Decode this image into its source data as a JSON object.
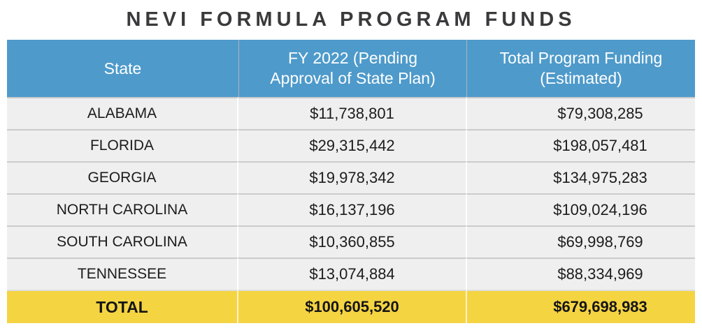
{
  "page": {
    "title": "NEVI FORMULA PROGRAM FUNDS"
  },
  "colors": {
    "header_bg": "#4e9acb",
    "header_text": "#ffffff",
    "row_bg": "#f0efef",
    "row_separator": "#cbcbcb",
    "total_bg": "#f5d442",
    "title_text": "#3a3a3c",
    "body_text": "#1c1c1c",
    "page_bg": "#ffffff"
  },
  "table": {
    "headers": {
      "state": "State",
      "fy2022": "FY 2022 (Pending\nApproval of State Plan)",
      "total": "Total Program Funding\n(Estimated)"
    },
    "rows": [
      {
        "state": "ALABAMA",
        "fy2022": "$11,738,801",
        "total": "$79,308,285"
      },
      {
        "state": "FLORIDA",
        "fy2022": "$29,315,442",
        "total": "$198,057,481"
      },
      {
        "state": "GEORGIA",
        "fy2022": "$19,978,342",
        "total": "$134,975,283"
      },
      {
        "state": "NORTH CAROLINA",
        "fy2022": "$16,137,196",
        "total": "$109,024,196"
      },
      {
        "state": "SOUTH CAROLINA",
        "fy2022": "$10,360,855",
        "total": "$69,998,769"
      },
      {
        "state": "TENNESSEE",
        "fy2022": "$13,074,884",
        "total": "$88,334,969"
      }
    ],
    "total_row": {
      "label": "TOTAL",
      "fy2022": "$100,605,520",
      "total": "$679,698,983"
    }
  },
  "chart_data": {
    "type": "table",
    "title": "NEVI FORMULA PROGRAM FUNDS",
    "columns": [
      "State",
      "FY 2022 (Pending Approval of State Plan)",
      "Total Program Funding (Estimated)"
    ],
    "rows": [
      [
        "ALABAMA",
        11738801,
        79308285
      ],
      [
        "FLORIDA",
        29315442,
        198057481
      ],
      [
        "GEORGIA",
        19978342,
        134975283
      ],
      [
        "NORTH CAROLINA",
        16137196,
        109024196
      ],
      [
        "SOUTH CAROLINA",
        10360855,
        69998769
      ],
      [
        "TENNESSEE",
        13074884,
        88334969
      ]
    ],
    "total_row": [
      "TOTAL",
      100605520,
      679698983
    ],
    "layout": {
      "header_position": "top",
      "total_row_position": "bottom",
      "gridlines": true
    }
  }
}
